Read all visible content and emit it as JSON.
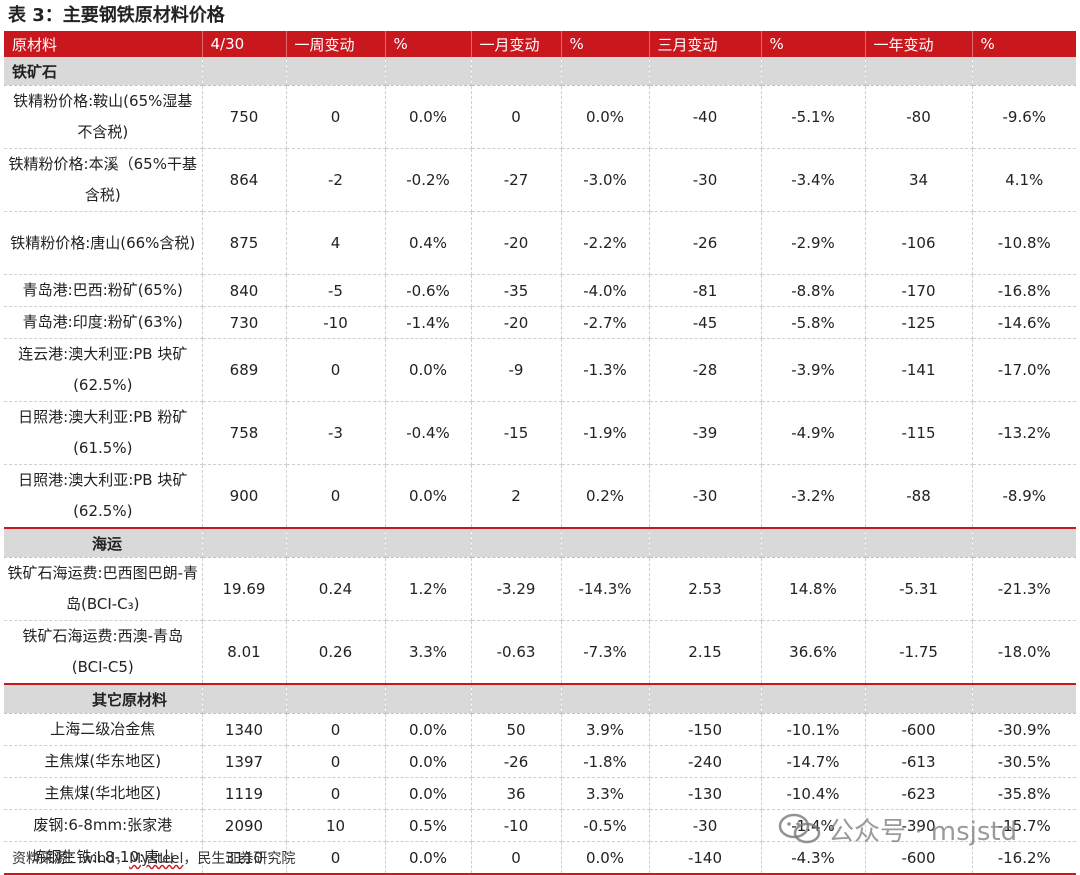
{
  "title": "表 3：主要钢铁原材料价格",
  "colors": {
    "header_red": "#c9171e",
    "section_gray": "#d9d9d9"
  },
  "headers": [
    "原材料",
    "4/30",
    "一周变动",
    "%",
    "一月变动",
    "%",
    "三月变动",
    "%",
    "一年变动",
    "%"
  ],
  "sections": [
    {
      "label": "铁矿石",
      "rows": [
        {
          "name": "铁精粉价格:鞍山(65%湿基不含税)",
          "values": [
            "750",
            "0",
            "0.0%",
            "0",
            "0.0%",
            "-40",
            "-5.1%",
            "-80",
            "-9.6%"
          ]
        },
        {
          "name": "铁精粉价格:本溪（65%干基含税)",
          "values": [
            "864",
            "-2",
            "-0.2%",
            "-27",
            "-3.0%",
            "-30",
            "-3.4%",
            "34",
            "4.1%"
          ]
        },
        {
          "name": "铁精粉价格:唐山(66%含税)",
          "values": [
            "875",
            "4",
            "0.4%",
            "-20",
            "-2.2%",
            "-26",
            "-2.9%",
            "-106",
            "-10.8%"
          ]
        },
        {
          "name": "青岛港:巴西:粉矿(65%)",
          "values": [
            "840",
            "-5",
            "-0.6%",
            "-35",
            "-4.0%",
            "-81",
            "-8.8%",
            "-170",
            "-16.8%"
          ]
        },
        {
          "name": "青岛港:印度:粉矿(63%)",
          "values": [
            "730",
            "-10",
            "-1.4%",
            "-20",
            "-2.7%",
            "-45",
            "-5.8%",
            "-125",
            "-14.6%"
          ]
        },
        {
          "name": "连云港:澳大利亚:PB 块矿(62.5%)",
          "values": [
            "689",
            "0",
            "0.0%",
            "-9",
            "-1.3%",
            "-28",
            "-3.9%",
            "-141",
            "-17.0%"
          ]
        },
        {
          "name": "日照港:澳大利亚:PB 粉矿(61.5%)",
          "values": [
            "758",
            "-3",
            "-0.4%",
            "-15",
            "-1.9%",
            "-39",
            "-4.9%",
            "-115",
            "-13.2%"
          ]
        },
        {
          "name": "日照港:澳大利亚:PB 块矿(62.5%)",
          "values": [
            "900",
            "0",
            "0.0%",
            "2",
            "0.2%",
            "-30",
            "-3.2%",
            "-88",
            "-8.9%"
          ]
        }
      ]
    },
    {
      "label": "海运",
      "rows": [
        {
          "name": "铁矿石海运费:巴西图巴朗-青岛(BCI-C₃)",
          "values": [
            "19.69",
            "0.24",
            "1.2%",
            "-3.29",
            "-14.3%",
            "2.53",
            "14.8%",
            "-5.31",
            "-21.3%"
          ]
        },
        {
          "name": "铁矿石海运费:西澳-青岛(BCI-C5)",
          "values": [
            "8.01",
            "0.26",
            "3.3%",
            "-0.63",
            "-7.3%",
            "2.15",
            "36.6%",
            "-1.75",
            "-18.0%"
          ]
        }
      ]
    },
    {
      "label": "其它原材料",
      "rows": [
        {
          "name": "上海二级冶金焦",
          "values": [
            "1340",
            "0",
            "0.0%",
            "50",
            "3.9%",
            "-150",
            "-10.1%",
            "-600",
            "-30.9%"
          ]
        },
        {
          "name": "主焦煤(华东地区)",
          "values": [
            "1397",
            "0",
            "0.0%",
            "-26",
            "-1.8%",
            "-240",
            "-14.7%",
            "-613",
            "-30.5%"
          ]
        },
        {
          "name": "主焦煤(华北地区)",
          "values": [
            "1119",
            "0",
            "0.0%",
            "36",
            "3.3%",
            "-130",
            "-10.4%",
            "-623",
            "-35.8%"
          ]
        },
        {
          "name": "废钢:6-8mm:张家港",
          "values": [
            "2090",
            "10",
            "0.5%",
            "-10",
            "-0.5%",
            "-30",
            "-1.4%",
            "-390",
            "-15.7%"
          ]
        },
        {
          "name": "炼钢生铁:L8-10:唐山",
          "values": [
            "3110",
            "0",
            "0.0%",
            "0",
            "0.0%",
            "-140",
            "-4.3%",
            "-600",
            "-16.2%"
          ]
        }
      ]
    }
  ],
  "footer": {
    "prefix": "资料来源：wind，",
    "underlined": "Mysteel",
    "suffix": "，民生证券研究院"
  },
  "watermark": {
    "icon": "wechat-icon",
    "text": "公众号 · msjstd"
  }
}
